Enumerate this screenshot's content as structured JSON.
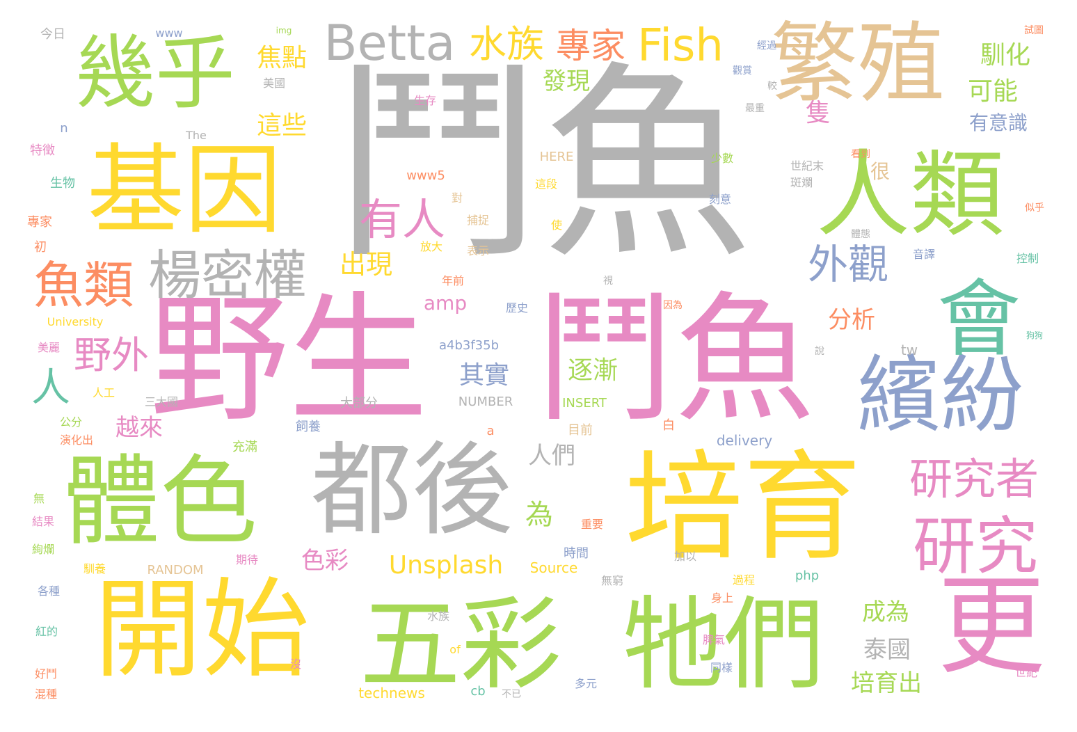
{
  "words": [
    {
      "text": "鬥魚",
      "color": "#b3b3b3"
    },
    {
      "text": "野生",
      "color": "#e78ac3"
    },
    {
      "text": "鬥魚",
      "color": "#e78ac3"
    },
    {
      "text": "基因",
      "color": "#ffd92f"
    },
    {
      "text": "繁殖",
      "color": "#e5c494"
    },
    {
      "text": "培育",
      "color": "#ffd92f"
    },
    {
      "text": "人類",
      "color": "#a6d854"
    },
    {
      "text": "都後",
      "color": "#b3b3b3"
    },
    {
      "text": "體色",
      "color": "#a6d854"
    },
    {
      "text": "開始",
      "color": "#ffd92f"
    },
    {
      "text": "五彩",
      "color": "#a6d854"
    },
    {
      "text": "牠們",
      "color": "#a6d854"
    },
    {
      "text": "幾乎",
      "color": "#a6d854"
    },
    {
      "text": "繽紛",
      "color": "#8da0cb"
    },
    {
      "text": "會",
      "color": "#66c2a5"
    },
    {
      "text": "更",
      "color": "#e78ac3"
    },
    {
      "text": "研究",
      "color": "#e78ac3"
    },
    {
      "text": "楊密權",
      "color": "#b3b3b3"
    },
    {
      "text": "魚類",
      "color": "#fc8d62"
    },
    {
      "text": "Betta",
      "color": "#b3b3b3"
    },
    {
      "text": "Fish",
      "color": "#ffd92f"
    },
    {
      "text": "水族",
      "color": "#ffd92f"
    },
    {
      "text": "專家",
      "color": "#fc8d62"
    },
    {
      "text": "有人",
      "color": "#e78ac3"
    },
    {
      "text": "研究者",
      "color": "#e78ac3"
    },
    {
      "text": "外觀",
      "color": "#8da0cb"
    },
    {
      "text": "野外",
      "color": "#e78ac3"
    },
    {
      "text": "人",
      "color": "#66c2a5"
    },
    {
      "text": "焦點",
      "color": "#ffd92f"
    },
    {
      "text": "這些",
      "color": "#ffd92f"
    },
    {
      "text": "發現",
      "color": "#a6d854"
    },
    {
      "text": "出現",
      "color": "#ffd92f"
    },
    {
      "text": "可能",
      "color": "#a6d854"
    },
    {
      "text": "馴化",
      "color": "#a6d854"
    },
    {
      "text": "隻",
      "color": "#e78ac3"
    },
    {
      "text": "有意識",
      "color": "#8da0cb"
    },
    {
      "text": "Unsplash",
      "color": "#ffd92f"
    },
    {
      "text": "amp",
      "color": "#e78ac3"
    },
    {
      "text": "其實",
      "color": "#8da0cb"
    },
    {
      "text": "逐漸",
      "color": "#a6d854"
    },
    {
      "text": "為",
      "color": "#a6d854"
    },
    {
      "text": "人們",
      "color": "#b3b3b3"
    },
    {
      "text": "分析",
      "color": "#fc8d62"
    },
    {
      "text": "成為",
      "color": "#a6d854"
    },
    {
      "text": "泰國",
      "color": "#b3b3b3"
    },
    {
      "text": "培育出",
      "color": "#a6d854"
    },
    {
      "text": "色彩",
      "color": "#e78ac3"
    },
    {
      "text": "越來",
      "color": "#e78ac3"
    },
    {
      "text": "很",
      "color": "#e5c494"
    },
    {
      "text": "a4b3f35b",
      "color": "#8da0cb"
    },
    {
      "text": "NUMBER",
      "color": "#b3b3b3"
    },
    {
      "text": "INSERT",
      "color": "#a6d854"
    },
    {
      "text": "RANDOM",
      "color": "#e5c494"
    },
    {
      "text": "Source",
      "color": "#ffd92f"
    },
    {
      "text": "technews",
      "color": "#ffd92f"
    },
    {
      "text": "delivery",
      "color": "#8da0cb"
    },
    {
      "text": "University",
      "color": "#ffd92f"
    },
    {
      "text": "php",
      "color": "#66c2a5"
    },
    {
      "text": "www5",
      "color": "#fc8d62"
    },
    {
      "text": "HERE",
      "color": "#e5c494"
    },
    {
      "text": "tw",
      "color": "#b3b3b3"
    },
    {
      "text": "www",
      "color": "#8da0cb"
    },
    {
      "text": "The",
      "color": "#b3b3b3"
    },
    {
      "text": "今日",
      "color": "#b3b3b3"
    },
    {
      "text": "美國",
      "color": "#b3b3b3"
    },
    {
      "text": "特徵",
      "color": "#e78ac3"
    },
    {
      "text": "生物",
      "color": "#66c2a5"
    },
    {
      "text": "專家",
      "color": "#fc8d62"
    },
    {
      "text": "初",
      "color": "#fc8d62"
    },
    {
      "text": "美麗",
      "color": "#e78ac3"
    },
    {
      "text": "人工",
      "color": "#ffd92f"
    },
    {
      "text": "三大國",
      "color": "#b3b3b3"
    },
    {
      "text": "公分",
      "color": "#a6d854"
    },
    {
      "text": "演化出",
      "color": "#fc8d62"
    },
    {
      "text": "充滿",
      "color": "#a6d854"
    },
    {
      "text": "飼養",
      "color": "#8da0cb"
    },
    {
      "text": "大部分",
      "color": "#b3b3b3"
    },
    {
      "text": "目前",
      "color": "#e5c494"
    },
    {
      "text": "白",
      "color": "#fc8d62"
    },
    {
      "text": "無",
      "color": "#a6d854"
    },
    {
      "text": "結果",
      "color": "#e78ac3"
    },
    {
      "text": "絢爛",
      "color": "#a6d854"
    },
    {
      "text": "各種",
      "color": "#8da0cb"
    },
    {
      "text": "馴養",
      "color": "#ffd92f"
    },
    {
      "text": "期待",
      "color": "#e78ac3"
    },
    {
      "text": "紅的",
      "color": "#66c2a5"
    },
    {
      "text": "好鬥",
      "color": "#fc8d62"
    },
    {
      "text": "混種",
      "color": "#fc8d62"
    },
    {
      "text": "水族",
      "color": "#b3b3b3"
    },
    {
      "text": "沒",
      "color": "#e78ac3"
    },
    {
      "text": "of",
      "color": "#ffd92f"
    },
    {
      "text": "cb",
      "color": "#66c2a5"
    },
    {
      "text": "不已",
      "color": "#b3b3b3"
    },
    {
      "text": "多元",
      "color": "#8da0cb"
    },
    {
      "text": "時間",
      "color": "#8da0cb"
    },
    {
      "text": "無窮",
      "color": "#b3b3b3"
    },
    {
      "text": "加以",
      "color": "#b3b3b3"
    },
    {
      "text": "過程",
      "color": "#ffd92f"
    },
    {
      "text": "身上",
      "color": "#fc8d62"
    },
    {
      "text": "脾氣",
      "color": "#e78ac3"
    },
    {
      "text": "同樣",
      "color": "#8da0cb"
    },
    {
      "text": "世紀",
      "color": "#e78ac3"
    },
    {
      "text": "重要",
      "color": "#fc8d62"
    },
    {
      "text": "年前",
      "color": "#fc8d62"
    },
    {
      "text": "歷史",
      "color": "#8da0cb"
    },
    {
      "text": "放大",
      "color": "#ffd92f"
    },
    {
      "text": "表示",
      "color": "#e5c494"
    },
    {
      "text": "捕捉",
      "color": "#e5c494"
    },
    {
      "text": "對",
      "color": "#e5c494"
    },
    {
      "text": "使",
      "color": "#ffd92f"
    },
    {
      "text": "這段",
      "color": "#ffd92f"
    },
    {
      "text": "少數",
      "color": "#a6d854"
    },
    {
      "text": "刻意",
      "color": "#8da0cb"
    },
    {
      "text": "世紀末",
      "color": "#b3b3b3"
    },
    {
      "text": "斑斕",
      "color": "#b3b3b3"
    },
    {
      "text": "看到",
      "color": "#fc8d62"
    },
    {
      "text": "控制",
      "color": "#66c2a5"
    },
    {
      "text": "體態",
      "color": "#b3b3b3"
    },
    {
      "text": "音譯",
      "color": "#8da0cb"
    },
    {
      "text": "生存",
      "color": "#e78ac3"
    },
    {
      "text": "較",
      "color": "#b3b3b3"
    },
    {
      "text": "最重",
      "color": "#b3b3b3"
    },
    {
      "text": "觀賞",
      "color": "#8da0cb"
    },
    {
      "text": "經過",
      "color": "#8da0cb"
    },
    {
      "text": "試圖",
      "color": "#fc8d62"
    },
    {
      "text": "似乎",
      "color": "#fc8d62"
    },
    {
      "text": "狗狗",
      "color": "#66c2a5"
    },
    {
      "text": "說",
      "color": "#b3b3b3"
    },
    {
      "text": "視",
      "color": "#b3b3b3"
    },
    {
      "text": "因為",
      "color": "#fc8d62"
    },
    {
      "text": "a",
      "color": "#fc8d62"
    },
    {
      "text": "n",
      "color": "#8da0cb"
    },
    {
      "text": "img",
      "color": "#a6d854"
    }
  ]
}
